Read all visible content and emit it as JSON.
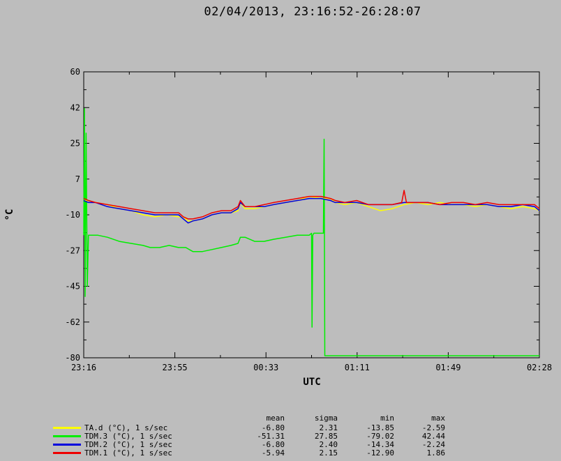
{
  "chart_data": {
    "type": "line",
    "title": "02/04/2013, 23:16:52-26:28:07",
    "xlabel": "UTC",
    "ylabel": "°C",
    "ylim": [
      -80,
      60
    ],
    "yticks": [
      "60",
      "42",
      "25",
      "7",
      "-10",
      "-27",
      "-45",
      "-62",
      "-80"
    ],
    "xticks": [
      "23:16",
      "23:55",
      "00:33",
      "01:11",
      "01:49",
      "02:28"
    ],
    "xlim_minutes": [
      0,
      192
    ],
    "grid": false,
    "legend_placement": "bottom-left",
    "stats_headers": [
      "mean",
      "sigma",
      "min",
      "max"
    ],
    "series": [
      {
        "name": "TA.d (°C), 1 s/sec",
        "color": "#ffff00",
        "stats": [
          "-6.80",
          "2.31",
          "-13.85",
          "-2.59"
        ],
        "x": [
          0,
          2,
          5,
          10,
          15,
          20,
          25,
          30,
          35,
          40,
          42,
          44,
          46,
          50,
          54,
          58,
          62,
          65,
          66,
          68,
          72,
          76,
          80,
          85,
          90,
          95,
          100,
          104,
          106,
          110,
          115,
          120,
          125,
          130,
          135,
          140,
          145,
          150,
          155,
          160,
          165,
          170,
          175,
          180,
          185,
          190,
          192
        ],
        "y": [
          -3,
          -3,
          -4,
          -5,
          -7,
          -8,
          -10,
          -11,
          -10,
          -11,
          -11,
          -13,
          -13,
          -12,
          -10,
          -9,
          -9,
          -8,
          -4,
          -7,
          -7,
          -6,
          -5,
          -4,
          -3,
          -1,
          -2,
          -2,
          -4,
          -5,
          -4,
          -6,
          -8,
          -7,
          -5,
          -4,
          -5,
          -4,
          -5,
          -5,
          -6,
          -5,
          -6,
          -7,
          -6,
          -7,
          -8
        ]
      },
      {
        "name": "TDM.3 (°C), 1 s/sec",
        "color": "#00ee00",
        "stats": [
          "-51.31",
          "27.85",
          "-79.02",
          "42.44"
        ],
        "x": [
          0,
          0.3,
          0.6,
          1,
          1.5,
          2,
          3,
          6,
          10,
          15,
          20,
          25,
          28,
          32,
          36,
          40,
          43,
          46,
          48,
          50,
          54,
          58,
          62,
          65,
          66,
          68,
          72,
          76,
          80,
          85,
          90,
          95,
          96,
          96.2,
          96.5,
          97,
          98,
          99,
          100,
          101,
          101.3,
          101.6,
          102,
          110,
          120,
          130,
          140,
          150,
          160,
          170,
          180,
          192
        ],
        "y": [
          -20,
          42,
          -50,
          30,
          -45,
          -20,
          -20,
          -20,
          -21,
          -23,
          -24,
          -25,
          -26,
          -26,
          -25,
          -26,
          -26,
          -28,
          -28,
          -28,
          -27,
          -26,
          -25,
          -24,
          -21,
          -21,
          -23,
          -23,
          -22,
          -21,
          -20,
          -20,
          -19,
          -65,
          -20,
          -19,
          -19,
          -19,
          -19,
          -19,
          27,
          -79,
          -79,
          -79,
          -79,
          -79,
          -79,
          -79,
          -79,
          -79,
          -79,
          -79
        ]
      },
      {
        "name": "TDM.2 (°C), 1 s/sec",
        "color": "#0000dd",
        "stats": [
          "-6.80",
          "2.40",
          "-14.34",
          "-2.24"
        ],
        "x": [
          0,
          2,
          5,
          10,
          15,
          20,
          25,
          30,
          35,
          40,
          42,
          44,
          46,
          50,
          54,
          58,
          62,
          65,
          66,
          68,
          72,
          76,
          80,
          85,
          90,
          95,
          100,
          104,
          106,
          110,
          115,
          120,
          125,
          130,
          135,
          140,
          145,
          150,
          155,
          160,
          165,
          170,
          175,
          180,
          185,
          190,
          192
        ],
        "y": [
          -3,
          -4,
          -4,
          -6,
          -7,
          -8,
          -9,
          -10,
          -10,
          -10,
          -12,
          -14,
          -13,
          -12,
          -10,
          -9,
          -9,
          -7,
          -4,
          -6,
          -6,
          -6,
          -5,
          -4,
          -3,
          -2,
          -2,
          -3,
          -4,
          -4,
          -4,
          -5,
          -5,
          -5,
          -4,
          -4,
          -4,
          -5,
          -5,
          -5,
          -5,
          -5,
          -6,
          -6,
          -5,
          -6,
          -8
        ]
      },
      {
        "name": "TDM.1 (°C), 1 s/sec",
        "color": "#ee0000",
        "stats": [
          "-5.94",
          "2.15",
          "-12.90",
          "1.86"
        ],
        "x": [
          0,
          2,
          5,
          10,
          15,
          20,
          25,
          30,
          35,
          40,
          42,
          44,
          46,
          50,
          54,
          58,
          62,
          65,
          66,
          68,
          72,
          76,
          80,
          85,
          90,
          95,
          100,
          104,
          106,
          110,
          115,
          120,
          125,
          130,
          134,
          135,
          136,
          140,
          145,
          150,
          155,
          160,
          165,
          170,
          175,
          180,
          185,
          190,
          192
        ],
        "y": [
          -2,
          -3,
          -4,
          -5,
          -6,
          -7,
          -8,
          -9,
          -9,
          -9,
          -11,
          -12,
          -12,
          -11,
          -9,
          -8,
          -8,
          -6,
          -3,
          -6,
          -6,
          -5,
          -4,
          -3,
          -2,
          -1,
          -1,
          -2,
          -3,
          -4,
          -3,
          -5,
          -5,
          -5,
          -4,
          2,
          -4,
          -4,
          -4,
          -5,
          -4,
          -4,
          -5,
          -4,
          -5,
          -5,
          -5,
          -5,
          -7
        ]
      }
    ]
  }
}
